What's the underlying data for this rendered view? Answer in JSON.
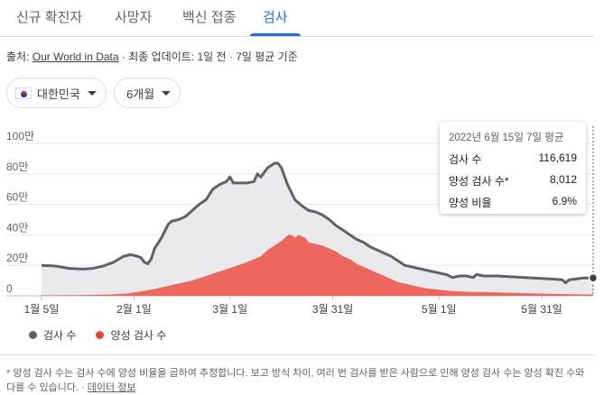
{
  "tabs": [
    {
      "label": "신규 확진자"
    },
    {
      "label": "사망자"
    },
    {
      "label": "백신 접종"
    },
    {
      "label": "검사"
    }
  ],
  "active_tab": "검사",
  "source": {
    "prefix": "출처: ",
    "link": "Our World in Data",
    "rest": " · 최종 업데이트: 1일 전 · 7일 평균 기준"
  },
  "filters": {
    "region": "대한민국",
    "period": "6개월"
  },
  "tooltip": {
    "title": "2022년 6월 15일 7일 평균",
    "rows": [
      {
        "label": "검사 수",
        "value": "116,619"
      },
      {
        "label": "양성 검사 수*",
        "value": "8,012"
      },
      {
        "label": "양성 비율",
        "value": "6.9%"
      }
    ]
  },
  "legend": [
    {
      "label": "검사 수",
      "color": "#5f6368"
    },
    {
      "label": "양성 검사 수",
      "color": "#ea4335"
    }
  ],
  "footnote": {
    "text": "* 양성 검사 수는 검사 수에 양성 비율을 곱하여 추정합니다. 보고 방식 차이, 여러 번 검사를 받은 사람으로 인해 양성 검사 수는 양성 확진 수와 다를 수 있습니다. · ",
    "link": "데이터 정보"
  },
  "chart_data": {
    "type": "area",
    "title": "",
    "xlabel": "",
    "ylabel": "",
    "ylim": [
      0,
      100
    ],
    "y_unit": "만",
    "y_ticks": [
      0,
      20,
      40,
      60,
      80,
      100
    ],
    "y_tick_labels": [
      "0",
      "20만",
      "40만",
      "60만",
      "80만",
      "100만"
    ],
    "x_tick_labels": [
      "1월 5일",
      "2월 1일",
      "3월 1일",
      "3월 31일",
      "5월 1일",
      "5월 31일"
    ],
    "x_tick_days": [
      0,
      27,
      55,
      85,
      116,
      146
    ],
    "x_max_day": 161,
    "series": [
      {
        "name": "검사 수",
        "color": "#5f6368",
        "fill": "#e8eaed",
        "points": [
          [
            0,
            20
          ],
          [
            4,
            19.5
          ],
          [
            8,
            18
          ],
          [
            12,
            17.5
          ],
          [
            15,
            18
          ],
          [
            18,
            19.5
          ],
          [
            21,
            22
          ],
          [
            24,
            26
          ],
          [
            26,
            27
          ],
          [
            28,
            26
          ],
          [
            29,
            25
          ],
          [
            30,
            22
          ],
          [
            31,
            21
          ],
          [
            32,
            24
          ],
          [
            33,
            31
          ],
          [
            35,
            38
          ],
          [
            37,
            47
          ],
          [
            38,
            49
          ],
          [
            40,
            50
          ],
          [
            42,
            52
          ],
          [
            44,
            56
          ],
          [
            46,
            60
          ],
          [
            48,
            63
          ],
          [
            50,
            70
          ],
          [
            52,
            73
          ],
          [
            54,
            75
          ],
          [
            55,
            78
          ],
          [
            56,
            74
          ],
          [
            58,
            74
          ],
          [
            60,
            74
          ],
          [
            62,
            75
          ],
          [
            63,
            80
          ],
          [
            64,
            78
          ],
          [
            66,
            84
          ],
          [
            68,
            87
          ],
          [
            69,
            87
          ],
          [
            70,
            84
          ],
          [
            71,
            78
          ],
          [
            72,
            72
          ],
          [
            74,
            63
          ],
          [
            76,
            59
          ],
          [
            78,
            56
          ],
          [
            80,
            55
          ],
          [
            82,
            53
          ],
          [
            84,
            50
          ],
          [
            86,
            46
          ],
          [
            88,
            43
          ],
          [
            90,
            40
          ],
          [
            92,
            37
          ],
          [
            94,
            35
          ],
          [
            96,
            32
          ],
          [
            98,
            30
          ],
          [
            100,
            28
          ],
          [
            102,
            26
          ],
          [
            104,
            23
          ],
          [
            106,
            20
          ],
          [
            108,
            19
          ],
          [
            110,
            18
          ],
          [
            112,
            17
          ],
          [
            114,
            16
          ],
          [
            116,
            15
          ],
          [
            118,
            14
          ],
          [
            120,
            12
          ],
          [
            122,
            13
          ],
          [
            124,
            13
          ],
          [
            126,
            12
          ],
          [
            127,
            14
          ],
          [
            129,
            13
          ],
          [
            133,
            13
          ],
          [
            137,
            12.5
          ],
          [
            141,
            12
          ],
          [
            145,
            11.5
          ],
          [
            149,
            11
          ],
          [
            152,
            10.5
          ],
          [
            153,
            8.5
          ],
          [
            154,
            10.5
          ],
          [
            156,
            11
          ],
          [
            158,
            11.7
          ],
          [
            161,
            11.7
          ]
        ]
      },
      {
        "name": "양성 검사 수",
        "color": "#ee675c",
        "fill": "#ee675c",
        "points": [
          [
            0,
            0.3
          ],
          [
            10,
            0.4
          ],
          [
            20,
            0.8
          ],
          [
            25,
            1.5
          ],
          [
            28,
            2.5
          ],
          [
            32,
            4
          ],
          [
            36,
            6
          ],
          [
            40,
            8
          ],
          [
            44,
            10
          ],
          [
            48,
            13
          ],
          [
            52,
            16
          ],
          [
            56,
            19
          ],
          [
            60,
            22
          ],
          [
            64,
            26
          ],
          [
            66,
            30
          ],
          [
            68,
            33
          ],
          [
            70,
            36
          ],
          [
            72,
            40
          ],
          [
            73,
            40
          ],
          [
            74,
            38
          ],
          [
            75,
            40
          ],
          [
            77,
            38
          ],
          [
            78,
            35
          ],
          [
            80,
            34
          ],
          [
            82,
            33
          ],
          [
            84,
            31
          ],
          [
            86,
            29
          ],
          [
            88,
            26
          ],
          [
            90,
            24
          ],
          [
            92,
            21
          ],
          [
            94,
            19
          ],
          [
            96,
            17
          ],
          [
            98,
            15
          ],
          [
            100,
            13
          ],
          [
            102,
            11
          ],
          [
            104,
            9
          ],
          [
            106,
            8
          ],
          [
            108,
            7
          ],
          [
            110,
            6
          ],
          [
            112,
            5
          ],
          [
            116,
            4
          ],
          [
            120,
            3
          ],
          [
            125,
            2.6
          ],
          [
            130,
            2.4
          ],
          [
            135,
            2.1
          ],
          [
            140,
            1.8
          ],
          [
            145,
            1.5
          ],
          [
            150,
            1.2
          ],
          [
            155,
            1.0
          ],
          [
            161,
            0.8
          ]
        ]
      }
    ],
    "highlight": {
      "day": 161,
      "series": "검사 수",
      "value": 11.7
    }
  }
}
